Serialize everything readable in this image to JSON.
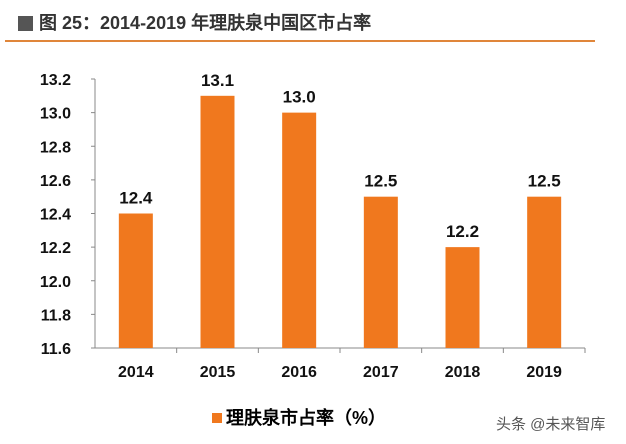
{
  "chart_data": {
    "type": "bar",
    "title": "图 25：2014-2019 年理肤泉中国区市占率",
    "categories": [
      "2014",
      "2015",
      "2016",
      "2017",
      "2018",
      "2019"
    ],
    "series": [
      {
        "name": "理肤泉市占率（%）",
        "values": [
          12.4,
          13.1,
          13.0,
          12.5,
          12.2,
          12.5
        ],
        "labels": [
          "12.4",
          "13.1",
          "13.0",
          "12.5",
          "12.2",
          "12.5"
        ]
      }
    ],
    "ylim": [
      11.6,
      13.2
    ],
    "yticks": [
      "11.6",
      "11.8",
      "12.0",
      "12.2",
      "12.4",
      "12.6",
      "12.8",
      "13.0",
      "13.2"
    ],
    "xlabel": "",
    "ylabel": "",
    "grid": false,
    "legend_position": "bottom",
    "bar_color": "#f0781e"
  },
  "watermark": "头条 @未来智库"
}
